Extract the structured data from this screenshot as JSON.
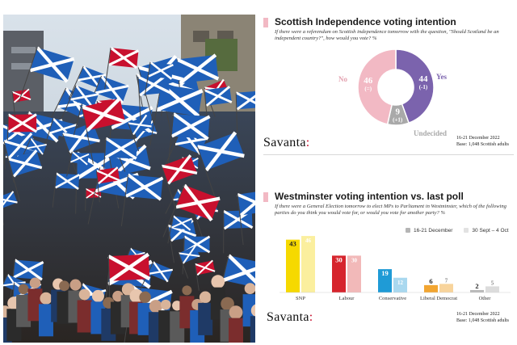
{
  "photo": {
    "icon": "scottish-saltire-crowd-photo"
  },
  "panel1": {
    "title": "Scottish Independence voting intention",
    "subtitle": "If there were a referendum on Scottish independence tomorrow with the question, \"Should Scotland be an independent country?\", how would you vote? %",
    "brand": "Savanta",
    "brand_dot": ":",
    "date": "16-21 December 2022",
    "base": "Base: 1,048 Scottish adults"
  },
  "panel2": {
    "title": "Westminster voting intention vs. last poll",
    "subtitle": "If there were a General Election tomorrow to elect MPs to Parliament in Westminster, which of the following parties do you think you would vote for, or would you vote for another party? %",
    "legend": [
      "16-21 December",
      "30 Sept – 4 Oct"
    ],
    "brand": "Savanta",
    "brand_dot": ":",
    "date": "16-21 December 2022",
    "base": "Base: 1,048 Scottish adults"
  },
  "chart_data": [
    {
      "type": "pie",
      "title": "Scottish Independence voting intention",
      "slices": [
        {
          "label": "Yes",
          "value": 44,
          "change": "(-1)",
          "color": "#7b63ad"
        },
        {
          "label": "Undecided",
          "value": 9,
          "change": "(+1)",
          "color": "#a9a9a9"
        },
        {
          "label": "No",
          "value": 46,
          "change": "(=)",
          "color": "#f2b9c4"
        }
      ]
    },
    {
      "type": "bar",
      "title": "Westminster voting intention vs. last poll",
      "categories": [
        "SNP",
        "Labour",
        "Conservative",
        "Liberal Democrat",
        "Other"
      ],
      "colors": [
        "#f6d900",
        "#d6242d",
        "#1f9bd6",
        "#f2a531",
        "#b9b9b9"
      ],
      "light_colors": [
        "#fbef9e",
        "#f2b9b9",
        "#a9d8ef",
        "#f8d49c",
        "#dcdcdc"
      ],
      "series": [
        {
          "name": "16-21 December",
          "values": [
            43,
            30,
            19,
            6,
            2
          ]
        },
        {
          "name": "30 Sept – 4 Oct",
          "values": [
            46,
            30,
            12,
            7,
            5
          ]
        }
      ],
      "ylim": [
        0,
        50
      ]
    }
  ]
}
